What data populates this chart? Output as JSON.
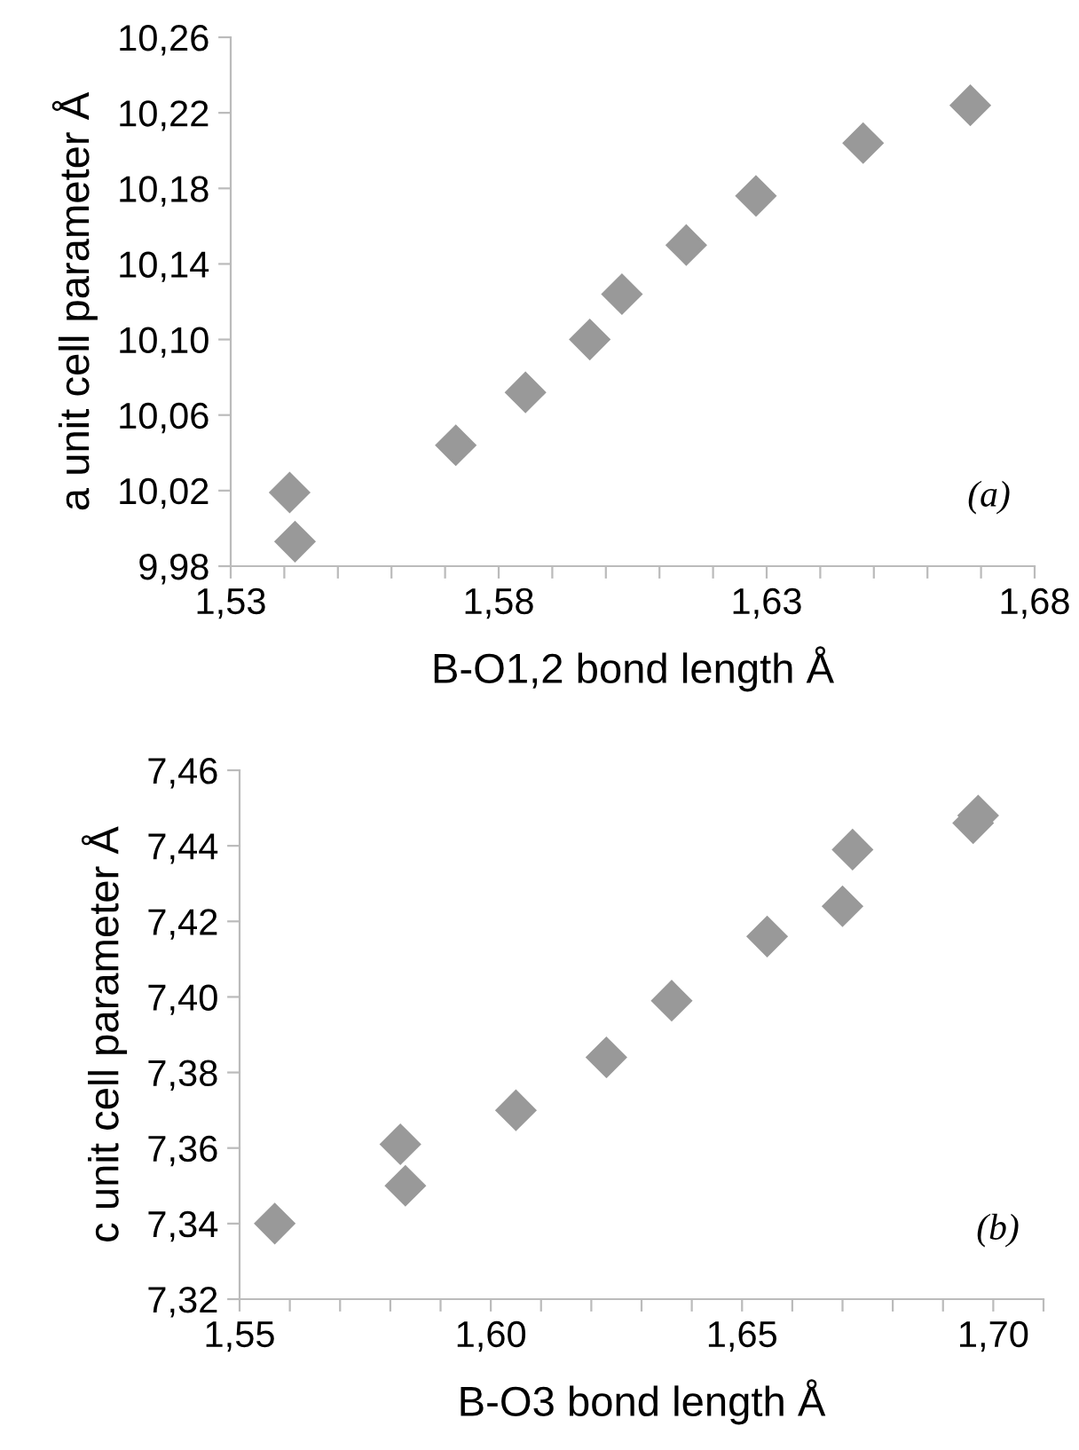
{
  "chart_data": [
    {
      "type": "scatter",
      "xlabel": "B-O1,2 bond length Å",
      "ylabel": "a unit cell parameter Å",
      "annotations": [
        "(a)"
      ],
      "marker": "diamond",
      "grid": false,
      "legend": false,
      "series": [
        {
          "color": "#999999",
          "x": [
            1.541,
            1.542,
            1.572,
            1.585,
            1.597,
            1.603,
            1.615,
            1.628,
            1.648,
            1.668
          ],
          "values": [
            10.019,
            9.993,
            10.044,
            10.072,
            10.1,
            10.124,
            10.15,
            10.176,
            10.204,
            10.224
          ]
        }
      ],
      "xlim": [
        1.53,
        1.68
      ],
      "ylim": [
        9.98,
        10.26
      ],
      "xticks": [
        {
          "value": 1.53,
          "label": "1,53"
        },
        {
          "value": 1.54,
          "label": null
        },
        {
          "value": 1.55,
          "label": null
        },
        {
          "value": 1.56,
          "label": null
        },
        {
          "value": 1.57,
          "label": null
        },
        {
          "value": 1.58,
          "label": "1,58"
        },
        {
          "value": 1.59,
          "label": null
        },
        {
          "value": 1.6,
          "label": null
        },
        {
          "value": 1.61,
          "label": null
        },
        {
          "value": 1.62,
          "label": null
        },
        {
          "value": 1.63,
          "label": "1,63"
        },
        {
          "value": 1.64,
          "label": null
        },
        {
          "value": 1.65,
          "label": null
        },
        {
          "value": 1.66,
          "label": null
        },
        {
          "value": 1.67,
          "label": null
        },
        {
          "value": 1.68,
          "label": "1,68"
        }
      ],
      "yticks": [
        {
          "value": 9.98,
          "label": "9,98"
        },
        {
          "value": 10.02,
          "label": "10,02"
        },
        {
          "value": 10.06,
          "label": "10,06"
        },
        {
          "value": 10.1,
          "label": "10,10"
        },
        {
          "value": 10.14,
          "label": "10,14"
        },
        {
          "value": 10.18,
          "label": "10,18"
        },
        {
          "value": 10.22,
          "label": "10,22"
        },
        {
          "value": 10.26,
          "label": "10,26"
        }
      ]
    },
    {
      "type": "scatter",
      "xlabel": "B-O3 bond length Å",
      "ylabel": "c unit cell parameter Å",
      "annotations": [
        "(b)"
      ],
      "marker": "diamond",
      "grid": false,
      "legend": false,
      "series": [
        {
          "color": "#999999",
          "x": [
            1.557,
            1.582,
            1.583,
            1.605,
            1.623,
            1.636,
            1.655,
            1.67,
            1.672,
            1.696,
            1.697
          ],
          "values": [
            7.34,
            7.361,
            7.35,
            7.37,
            7.384,
            7.399,
            7.416,
            7.424,
            7.439,
            7.446,
            7.448
          ]
        }
      ],
      "xlim": [
        1.55,
        1.71
      ],
      "ylim": [
        7.32,
        7.46
      ],
      "xticks": [
        {
          "value": 1.55,
          "label": "1,55"
        },
        {
          "value": 1.56,
          "label": null
        },
        {
          "value": 1.57,
          "label": null
        },
        {
          "value": 1.58,
          "label": null
        },
        {
          "value": 1.59,
          "label": null
        },
        {
          "value": 1.6,
          "label": "1,60"
        },
        {
          "value": 1.61,
          "label": null
        },
        {
          "value": 1.62,
          "label": null
        },
        {
          "value": 1.63,
          "label": null
        },
        {
          "value": 1.64,
          "label": null
        },
        {
          "value": 1.65,
          "label": "1,65"
        },
        {
          "value": 1.66,
          "label": null
        },
        {
          "value": 1.67,
          "label": null
        },
        {
          "value": 1.68,
          "label": null
        },
        {
          "value": 1.69,
          "label": null
        },
        {
          "value": 1.7,
          "label": "1,70"
        },
        {
          "value": 1.71,
          "label": null
        }
      ],
      "yticks": [
        {
          "value": 7.32,
          "label": "7,32"
        },
        {
          "value": 7.34,
          "label": "7,34"
        },
        {
          "value": 7.36,
          "label": "7,36"
        },
        {
          "value": 7.38,
          "label": "7,38"
        },
        {
          "value": 7.4,
          "label": "7,40"
        },
        {
          "value": 7.42,
          "label": "7,42"
        },
        {
          "value": 7.44,
          "label": "7,44"
        },
        {
          "value": 7.46,
          "label": "7,46"
        }
      ]
    }
  ]
}
